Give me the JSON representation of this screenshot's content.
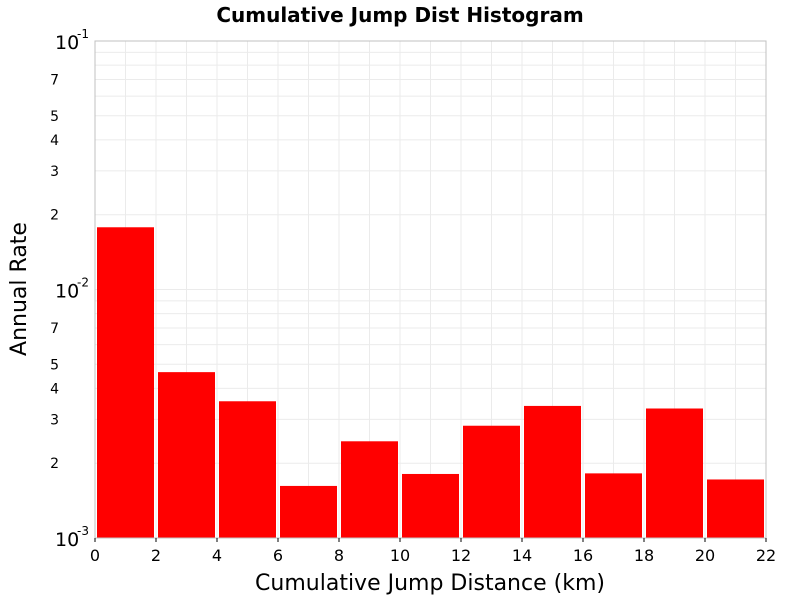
{
  "chart_data": {
    "type": "bar",
    "title": "Cumulative Jump Dist Histogram",
    "xlabel": "Cumulative Jump Distance (km)",
    "ylabel": "Annual Rate",
    "xlim": [
      0,
      22
    ],
    "ylim": [
      0.001,
      0.1
    ],
    "yscale": "log",
    "grid": true,
    "bar_color": "#ff0000",
    "bins": [
      {
        "x0": 0,
        "x1": 2,
        "value": 0.0178
      },
      {
        "x0": 2,
        "x1": 4,
        "value": 0.00465
      },
      {
        "x0": 4,
        "x1": 6,
        "value": 0.00355
      },
      {
        "x0": 6,
        "x1": 8,
        "value": 0.00162
      },
      {
        "x0": 8,
        "x1": 10,
        "value": 0.00245
      },
      {
        "x0": 10,
        "x1": 12,
        "value": 0.00181
      },
      {
        "x0": 12,
        "x1": 14,
        "value": 0.00283
      },
      {
        "x0": 14,
        "x1": 16,
        "value": 0.0034
      },
      {
        "x0": 16,
        "x1": 18,
        "value": 0.00182
      },
      {
        "x0": 18,
        "x1": 20,
        "value": 0.00332
      },
      {
        "x0": 20,
        "x1": 22,
        "value": 0.00172
      }
    ],
    "x_ticks": [
      "0",
      "2",
      "4",
      "6",
      "8",
      "10",
      "12",
      "14",
      "16",
      "18",
      "20",
      "22"
    ],
    "y_major_ticks": [
      {
        "value": 0.1,
        "base": "10",
        "exp": "-1"
      },
      {
        "value": 0.01,
        "base": "10",
        "exp": "-2"
      },
      {
        "value": 0.001,
        "base": "10",
        "exp": "-3"
      }
    ],
    "y_minor_ticks": [
      {
        "value": 0.07,
        "label": "7"
      },
      {
        "value": 0.05,
        "label": "5"
      },
      {
        "value": 0.04,
        "label": "4"
      },
      {
        "value": 0.03,
        "label": "3"
      },
      {
        "value": 0.02,
        "label": "2"
      },
      {
        "value": 0.007,
        "label": "7"
      },
      {
        "value": 0.005,
        "label": "5"
      },
      {
        "value": 0.004,
        "label": "4"
      },
      {
        "value": 0.003,
        "label": "3"
      },
      {
        "value": 0.002,
        "label": "2"
      }
    ]
  }
}
